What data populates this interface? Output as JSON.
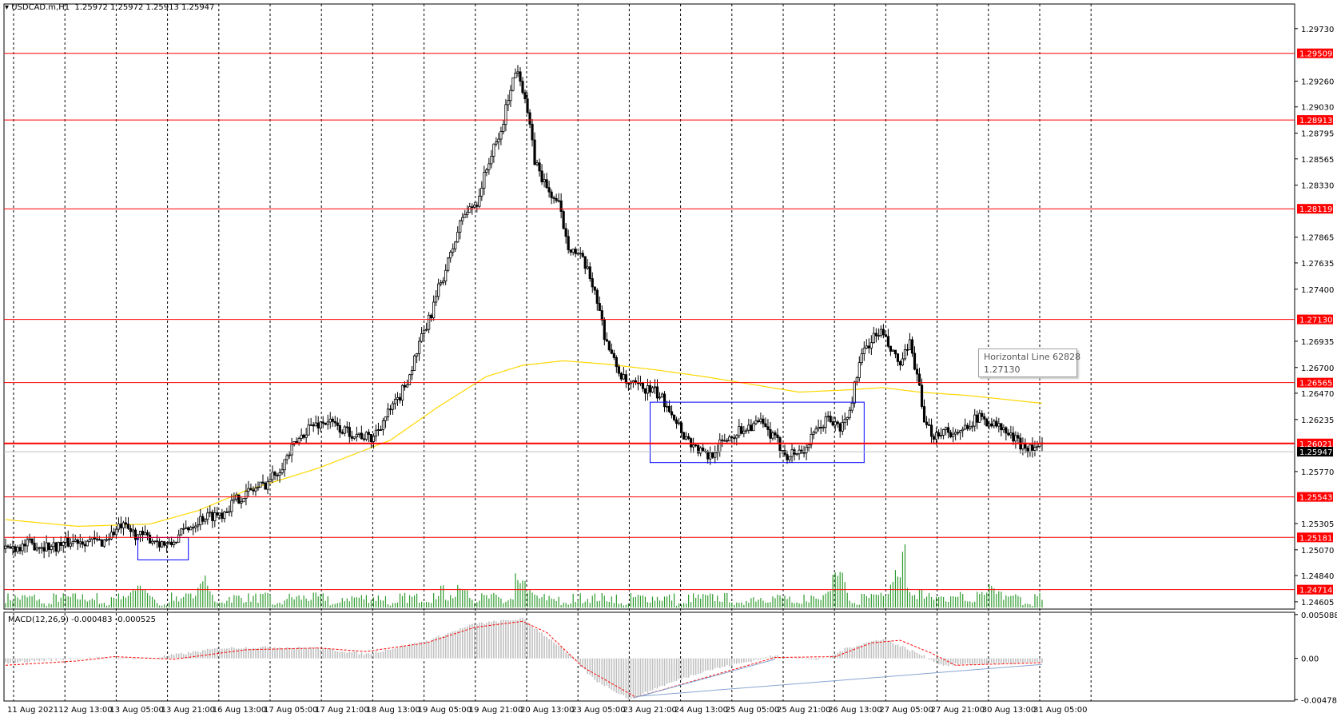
{
  "header": {
    "symbol": "USDCAD.m,H1",
    "ohlc": "1.25972 1.25972 1.25913 1.25947"
  },
  "macd_header": "MACD(12,26,9) -0.000483 -0.000525",
  "tooltip": {
    "title": "Horizontal Line 62828",
    "value": "1.27130"
  },
  "colors": {
    "candle": "#000000",
    "horizontal_line": "#ff0000",
    "moving_average": "#ffd700",
    "volume": "#2e9b2e",
    "macd_histogram": "#c0c0c0",
    "macd_signal": "#ff0000",
    "range_box": "#0000ff",
    "trendline": "#87a5d2",
    "price_label_bg": "#ff0000",
    "current_price_bg": "#000000"
  },
  "chart_data": [
    {
      "type": "candlestick",
      "instrument": "USDCAD.m",
      "timeframe": "H1",
      "x_ticks": [
        "11 Aug 2021",
        "12 Aug 13:00",
        "13 Aug 05:00",
        "13 Aug 21:00",
        "16 Aug 13:00",
        "17 Aug 05:00",
        "17 Aug 21:00",
        "18 Aug 13:00",
        "19 Aug 05:00",
        "19 Aug 21:00",
        "20 Aug 13:00",
        "23 Aug 05:00",
        "23 Aug 21:00",
        "24 Aug 13:00",
        "25 Aug 05:00",
        "25 Aug 21:00",
        "26 Aug 13:00",
        "27 Aug 05:00",
        "27 Aug 21:00",
        "30 Aug 13:00",
        "31 Aug 05:00"
      ],
      "y_ticks": [
        1.2973,
        1.2926,
        1.2903,
        1.28795,
        1.28565,
        1.2833,
        1.27865,
        1.27635,
        1.274,
        1.26935,
        1.267,
        1.2647,
        1.26235,
        1.2577,
        1.25305,
        1.2507,
        1.2484,
        1.24605
      ],
      "ylim": [
        1.2454,
        1.2995
      ],
      "horizontal_lines": [
        {
          "label": "1.29509",
          "value": 1.29509
        },
        {
          "label": "1.28913",
          "value": 1.28913
        },
        {
          "label": "1.28119",
          "value": 1.28119
        },
        {
          "label": "1.27130",
          "value": 1.2713
        },
        {
          "label": "1.26565",
          "value": 1.26565
        },
        {
          "label": "1.26021",
          "value": 1.26021
        },
        {
          "label": "1.25543",
          "value": 1.25543
        },
        {
          "label": "1.25181",
          "value": 1.25181
        },
        {
          "label": "1.24714",
          "value": 1.24714
        }
      ],
      "current_price": {
        "label": "1.25947",
        "value": 1.25947
      },
      "close_path": [
        [
          0,
          1.2508
        ],
        [
          10,
          1.2512
        ],
        [
          20,
          1.251
        ],
        [
          30,
          1.2516
        ],
        [
          40,
          1.2514
        ],
        [
          48,
          1.2528
        ],
        [
          55,
          1.252
        ],
        [
          62,
          1.2516
        ],
        [
          68,
          1.251
        ],
        [
          75,
          1.2526
        ],
        [
          82,
          1.2536
        ],
        [
          90,
          1.254
        ],
        [
          96,
          1.2552
        ],
        [
          102,
          1.256
        ],
        [
          108,
          1.2566
        ],
        [
          114,
          1.258
        ],
        [
          120,
          1.26
        ],
        [
          126,
          1.2617
        ],
        [
          134,
          1.2622
        ],
        [
          140,
          1.2614
        ],
        [
          147,
          1.261
        ],
        [
          152,
          1.2606
        ],
        [
          158,
          1.2626
        ],
        [
          163,
          1.264
        ],
        [
          168,
          1.2664
        ],
        [
          172,
          1.269
        ],
        [
          176,
          1.2712
        ],
        [
          180,
          1.274
        ],
        [
          185,
          1.277
        ],
        [
          190,
          1.2805
        ],
        [
          196,
          1.2818
        ],
        [
          201,
          1.2855
        ],
        [
          206,
          1.288
        ],
        [
          210,
          1.2922
        ],
        [
          213,
          1.2938
        ],
        [
          216,
          1.2912
        ],
        [
          220,
          1.2855
        ],
        [
          225,
          1.283
        ],
        [
          230,
          1.2815
        ],
        [
          234,
          1.278
        ],
        [
          240,
          1.2765
        ],
        [
          245,
          1.274
        ],
        [
          249,
          1.27
        ],
        [
          253,
          1.2675
        ],
        [
          258,
          1.2655
        ],
        [
          265,
          1.2652
        ],
        [
          270,
          1.2648
        ],
        [
          276,
          1.2635
        ],
        [
          282,
          1.261
        ],
        [
          287,
          1.2598
        ],
        [
          292,
          1.259
        ],
        [
          299,
          1.2605
        ],
        [
          304,
          1.2612
        ],
        [
          309,
          1.2618
        ],
        [
          314,
          1.262
        ],
        [
          320,
          1.2605
        ],
        [
          325,
          1.2592
        ],
        [
          332,
          1.2596
        ],
        [
          337,
          1.2612
        ],
        [
          342,
          1.2625
        ],
        [
          347,
          1.2615
        ],
        [
          351,
          1.263
        ],
        [
          354,
          1.2665
        ],
        [
          357,
          1.2685
        ],
        [
          360,
          1.2695
        ],
        [
          364,
          1.2702
        ],
        [
          368,
          1.2685
        ],
        [
          372,
          1.2672
        ],
        [
          376,
          1.269
        ],
        [
          379,
          1.2665
        ],
        [
          382,
          1.2618
        ],
        [
          386,
          1.261
        ],
        [
          391,
          1.2615
        ],
        [
          396,
          1.2608
        ],
        [
          401,
          1.2622
        ],
        [
          406,
          1.2625
        ],
        [
          412,
          1.2618
        ],
        [
          416,
          1.2612
        ],
        [
          421,
          1.2603
        ],
        [
          426,
          1.2598
        ],
        [
          431,
          1.26
        ]
      ],
      "moving_average_path": [
        [
          0,
          1.2534
        ],
        [
          30,
          1.2528
        ],
        [
          60,
          1.253
        ],
        [
          80,
          1.2542
        ],
        [
          100,
          1.256
        ],
        [
          130,
          1.258
        ],
        [
          160,
          1.2605
        ],
        [
          180,
          1.2635
        ],
        [
          200,
          1.2662
        ],
        [
          215,
          1.2672
        ],
        [
          232,
          1.2676
        ],
        [
          250,
          1.2673
        ],
        [
          270,
          1.2668
        ],
        [
          290,
          1.2662
        ],
        [
          310,
          1.2655
        ],
        [
          330,
          1.2648
        ],
        [
          350,
          1.265
        ],
        [
          365,
          1.2652
        ],
        [
          380,
          1.2648
        ],
        [
          400,
          1.2645
        ],
        [
          431,
          1.2638
        ]
      ],
      "range_boxes": [
        {
          "bar_start": 55,
          "bar_end": 76,
          "high": 1.2518,
          "low": 1.2498
        },
        {
          "bar_start": 268,
          "bar_end": 357,
          "high": 1.2639,
          "low": 1.2585
        }
      ]
    },
    {
      "type": "bar",
      "name": "volume",
      "peaks": [
        [
          55,
          0.3
        ],
        [
          83,
          0.35
        ],
        [
          186,
          0.45
        ],
        [
          213,
          0.4
        ],
        [
          346,
          0.45
        ],
        [
          374,
          0.7
        ],
        [
          400,
          0.3
        ],
        [
          410,
          0.28
        ]
      ]
    },
    {
      "type": "macd",
      "parameters": "12,26,9",
      "value": -0.000483,
      "signal_value": -0.000525,
      "y_ticks": [
        0.005088,
        0.0,
        -0.004788
      ],
      "ylim": [
        -0.00495,
        0.00535
      ],
      "histogram_path": [
        [
          0,
          -0.0005
        ],
        [
          30,
          0.0
        ],
        [
          60,
          0.0
        ],
        [
          90,
          0.0012
        ],
        [
          110,
          0.0013
        ],
        [
          130,
          0.0012
        ],
        [
          150,
          0.0005
        ],
        [
          175,
          0.002
        ],
        [
          195,
          0.004
        ],
        [
          215,
          0.0046
        ],
        [
          230,
          0.0015
        ],
        [
          245,
          -0.0025
        ],
        [
          260,
          -0.0048
        ],
        [
          270,
          -0.0035
        ],
        [
          290,
          -0.0015
        ],
        [
          320,
          0.0003
        ],
        [
          340,
          -0.0002
        ],
        [
          350,
          0.0012
        ],
        [
          365,
          0.0023
        ],
        [
          380,
          0.0005
        ],
        [
          390,
          -0.0008
        ],
        [
          410,
          -0.0006
        ],
        [
          431,
          -0.0005
        ]
      ],
      "signal_path": [
        [
          0,
          -0.0008
        ],
        [
          30,
          -0.0003
        ],
        [
          45,
          0.0002
        ],
        [
          70,
          -0.0001
        ],
        [
          100,
          0.001
        ],
        [
          130,
          0.0012
        ],
        [
          150,
          0.0008
        ],
        [
          175,
          0.0018
        ],
        [
          195,
          0.0036
        ],
        [
          215,
          0.0043
        ],
        [
          225,
          0.003
        ],
        [
          240,
          -0.001
        ],
        [
          262,
          -0.0045
        ],
        [
          275,
          -0.0035
        ],
        [
          300,
          -0.0015
        ],
        [
          320,
          0.0001
        ],
        [
          345,
          0.0002
        ],
        [
          360,
          0.0018
        ],
        [
          372,
          0.0021
        ],
        [
          385,
          0.0006
        ],
        [
          395,
          -0.0008
        ],
        [
          431,
          -0.0005
        ]
      ],
      "trendlines": [
        [
          [
            261,
            -0.0046
          ],
          [
            320,
            -0.0001
          ]
        ],
        [
          [
            263,
            -0.0044
          ],
          [
            431,
            -0.0007
          ]
        ]
      ]
    }
  ]
}
